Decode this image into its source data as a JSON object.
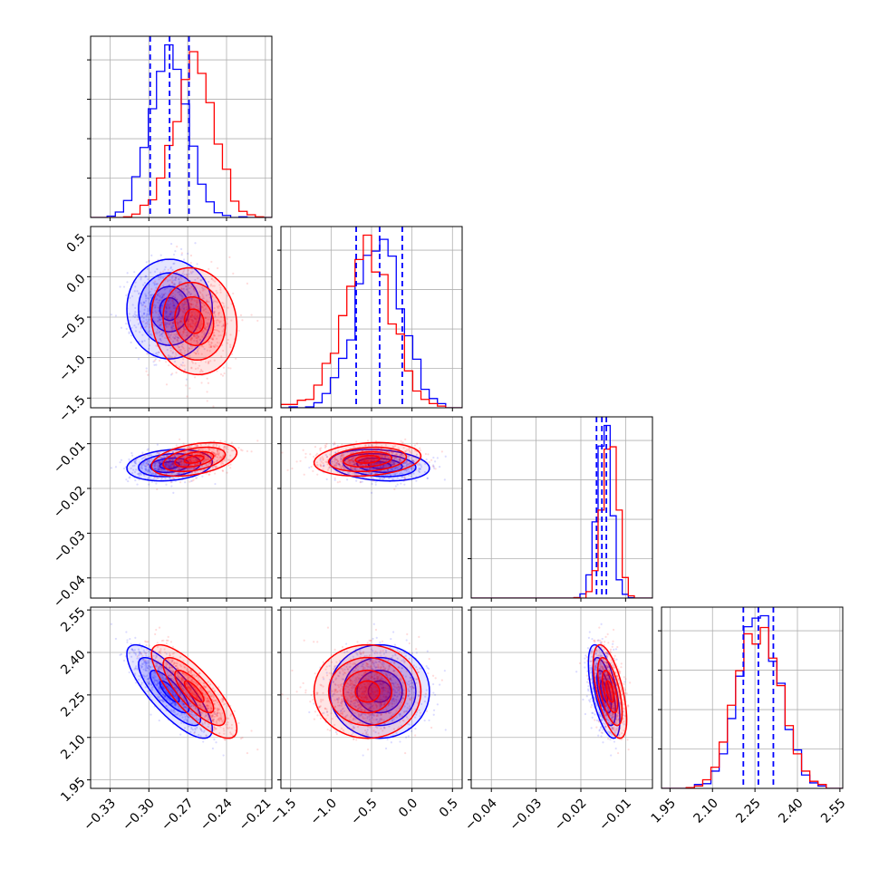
{
  "chart_data": {
    "type": "corner",
    "grid": true,
    "colors": {
      "series_a": "#0000ff",
      "series_b": "#ff0000",
      "quantile_lines": "#0000ff"
    },
    "series": [
      {
        "color": "#0000ff",
        "mean": [
          -0.284,
          -0.4,
          -0.0148,
          2.262
        ],
        "std": [
          0.015,
          0.28,
          0.0016,
          0.075
        ],
        "corr_01": 0.0,
        "corr_02": 0.2,
        "corr_03": -0.8,
        "corr_12": -0.2,
        "corr_13": 0.0,
        "corr_23": -0.6
      },
      {
        "color": "#ff0000",
        "mean": [
          -0.265,
          -0.55,
          -0.0135,
          2.262
        ],
        "std": [
          0.015,
          0.3,
          0.0017,
          0.075
        ],
        "corr_01": -0.1,
        "corr_02": 0.4,
        "corr_03": -0.8,
        "corr_12": 0.2,
        "corr_13": 0.0,
        "corr_23": -0.6
      }
    ],
    "quantiles_shown": [
      [
        -0.299,
        -0.284,
        -0.269
      ],
      [
        -0.69,
        -0.4,
        -0.12
      ],
      [
        -0.0165,
        -0.0153,
        -0.0143
      ],
      [
        2.209,
        2.262,
        2.315
      ]
    ],
    "axes": [
      {
        "range": [
          -0.345,
          -0.205
        ],
        "ticks": [
          -0.33,
          -0.3,
          -0.27,
          -0.24,
          -0.21
        ],
        "tick_labels": [
          "−0.33",
          "−0.30",
          "−0.27",
          "−0.24",
          "−0.21"
        ]
      },
      {
        "range": [
          -1.62,
          0.62
        ],
        "ticks": [
          -1.5,
          -1.0,
          -0.5,
          0.0,
          0.5
        ],
        "tick_labels": [
          "−1.5",
          "−1.0",
          "−0.5",
          "0.0",
          "0.5"
        ]
      },
      {
        "range": [
          -0.0445,
          -0.004
        ],
        "ticks": [
          -0.04,
          -0.03,
          -0.02,
          -0.01
        ],
        "tick_labels": [
          "−0.04",
          "−0.03",
          "−0.02",
          "−0.01"
        ]
      },
      {
        "range": [
          1.92,
          2.56
        ],
        "ticks": [
          1.95,
          2.1,
          2.25,
          2.4,
          2.55
        ],
        "tick_labels": [
          "1.95",
          "2.10",
          "2.25",
          "2.40",
          "2.55"
        ]
      }
    ]
  }
}
